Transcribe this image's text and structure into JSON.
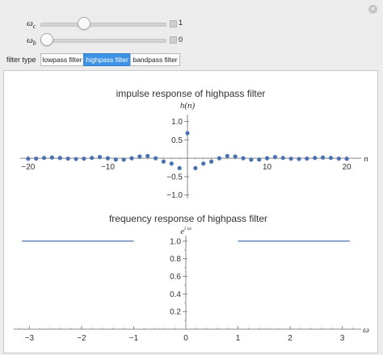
{
  "controls": {
    "wc": {
      "symbol": "ω",
      "sub": "c",
      "value": "1",
      "fraction": 0.33
    },
    "wb": {
      "symbol": "ω",
      "sub": "b",
      "value": "0",
      "fraction": 0.0
    },
    "filter_type_label": "filter type",
    "filter_options": [
      "lowpass filter",
      "highpass filter",
      "bandpass filter"
    ],
    "selected_filter": "highpass filter"
  },
  "colors": {
    "accent": "#3e93e6",
    "series": "#4a72b0"
  },
  "icons": {
    "close": "close-icon",
    "plus": "plus-icon"
  },
  "chart_data": [
    {
      "type": "scatter",
      "title": "impulse response of highpass filter",
      "ylabel": "h(n)",
      "xlabel": "n",
      "xlim": [
        -21,
        21
      ],
      "ylim": [
        -1.05,
        1.1
      ],
      "xticks": [
        -20,
        -10,
        10,
        20
      ],
      "xtick_labels": [
        "−20",
        "−10",
        "10",
        "20"
      ],
      "yticks": [
        1.0,
        0.5,
        -0.5,
        -1.0
      ],
      "ytick_labels": [
        "1.0",
        "0.5",
        "−0.5",
        "−1.0"
      ],
      "x": [
        -20,
        -19,
        -18,
        -17,
        -16,
        -15,
        -14,
        -13,
        -12,
        -11,
        -10,
        -9,
        -8,
        -7,
        -6,
        -5,
        -4,
        -3,
        -2,
        -1,
        0,
        1,
        2,
        3,
        4,
        5,
        6,
        7,
        8,
        9,
        10,
        11,
        12,
        13,
        14,
        15,
        16,
        17,
        18,
        19,
        20
      ],
      "y": [
        -0.015,
        -0.01,
        0.01,
        0.02,
        0.008,
        -0.01,
        -0.02,
        -0.012,
        0.01,
        0.035,
        0.0,
        -0.036,
        -0.039,
        0.0,
        0.047,
        0.061,
        0.0,
        -0.091,
        -0.145,
        -0.268,
        0.682,
        -0.268,
        -0.145,
        -0.091,
        0.0,
        0.061,
        0.047,
        0.0,
        -0.039,
        -0.036,
        0.0,
        0.035,
        0.01,
        -0.012,
        -0.02,
        -0.01,
        0.008,
        0.02,
        0.01,
        -0.01,
        -0.015
      ]
    },
    {
      "type": "line",
      "title": "frequency response of highpass filter",
      "ylabel": "e^(iω)",
      "ylabel_base": "e",
      "ylabel_sup": "i ω",
      "xlabel": "ω",
      "xlim": [
        -3.3,
        3.3
      ],
      "ylim": [
        0,
        1.1
      ],
      "xticks": [
        -3,
        -2,
        -1,
        0,
        1,
        2,
        3
      ],
      "xtick_labels": [
        "−3",
        "−2",
        "−1",
        "0",
        "1",
        "2",
        "3"
      ],
      "yticks": [
        1.0,
        0.8,
        0.6,
        0.4,
        0.2
      ],
      "ytick_labels": [
        "1.0",
        "0.8",
        "0.6",
        "0.4",
        "0.2"
      ],
      "series": [
        {
          "x": [
            -3.14159,
            -1.0
          ],
          "y": [
            1.0,
            1.0
          ]
        },
        {
          "x": [
            1.0,
            3.14159
          ],
          "y": [
            1.0,
            1.0
          ]
        }
      ]
    }
  ]
}
